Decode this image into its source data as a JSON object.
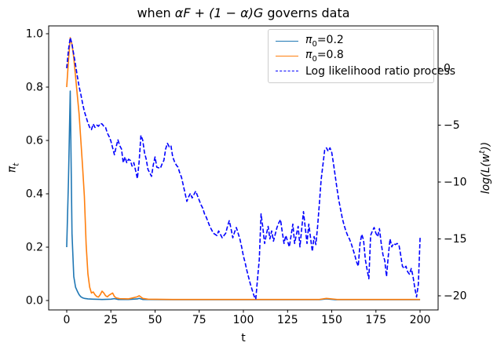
{
  "title": {
    "prefix": "when ",
    "math": "αF + (1 − α)G",
    "suffix": " governs data"
  },
  "x_axis": {
    "label": "t"
  },
  "y_left_axis": {
    "symbol": "π",
    "subscript": "t"
  },
  "y_right_axis": {
    "pre": "log(L(w",
    "sup": "t",
    "post": "))"
  },
  "legend": {
    "items": [
      {
        "symbol": "π",
        "subscript": "0",
        "text": "=0.2",
        "color": "#1f77b4",
        "style": "solid"
      },
      {
        "symbol": "π",
        "subscript": "0",
        "text": "=0.8",
        "color": "#ff7f0e",
        "style": "solid"
      },
      {
        "symbol": "",
        "subscript": "",
        "text": "Log likelihood ratio process",
        "color": "#0000ff",
        "style": "dashed"
      }
    ]
  },
  "colors": {
    "pi02": "#1f77b4",
    "pi08": "#ff7f0e",
    "llr": "#0000ff",
    "axis": "#000000",
    "legend_border": "#cccccc"
  },
  "chart_data": {
    "type": "line",
    "title": "when αF + (1 − α)G governs data",
    "xlabel": "t",
    "ylabel_left": "π_t",
    "ylabel_right": "log(L(w^t))",
    "grid": false,
    "legend_position": "upper right",
    "xlim": [
      -10.2,
      210.2
    ],
    "ylim_left": [
      -0.0353,
      1.0294
    ],
    "ylim_right": [
      -21.24,
      3.72
    ],
    "x_ticks": [
      [
        0,
        "0"
      ],
      [
        25,
        "25"
      ],
      [
        50,
        "50"
      ],
      [
        75,
        "75"
      ],
      [
        100,
        "100"
      ],
      [
        125,
        "125"
      ],
      [
        150,
        "150"
      ],
      [
        175,
        "175"
      ],
      [
        200,
        "200"
      ]
    ],
    "y_left_ticks": [
      [
        0.0,
        "0.0"
      ],
      [
        0.2,
        "0.2"
      ],
      [
        0.4,
        "0.4"
      ],
      [
        0.6,
        "0.6"
      ],
      [
        0.8,
        "0.8"
      ],
      [
        1.0,
        "1.0"
      ]
    ],
    "y_right_ticks": [
      [
        0,
        "0"
      ],
      [
        -5,
        "−5"
      ],
      [
        -10,
        "−10"
      ],
      [
        -15,
        "−15"
      ],
      [
        -20,
        "−20"
      ]
    ],
    "series": [
      {
        "name": "π0=0.2",
        "axis": "left",
        "color": "#1f77b4",
        "dash": false,
        "points": [
          [
            0,
            0.2
          ],
          [
            1,
            0.45
          ],
          [
            2,
            0.785
          ],
          [
            3,
            0.25
          ],
          [
            4,
            0.09
          ],
          [
            5,
            0.05
          ],
          [
            6,
            0.035
          ],
          [
            7,
            0.022
          ],
          [
            8,
            0.014
          ],
          [
            9,
            0.01
          ],
          [
            10,
            0.008
          ],
          [
            12,
            0.006
          ],
          [
            15,
            0.005
          ],
          [
            20,
            0.004
          ],
          [
            25,
            0.005
          ],
          [
            27,
            0.007
          ],
          [
            29,
            0.004
          ],
          [
            35,
            0.004
          ],
          [
            40,
            0.006
          ],
          [
            41,
            0.008
          ],
          [
            43,
            0.004
          ],
          [
            60,
            0.003
          ],
          [
            100,
            0.003
          ],
          [
            143,
            0.003
          ],
          [
            147,
            0.006
          ],
          [
            152,
            0.003
          ],
          [
            200,
            0.003
          ]
        ]
      },
      {
        "name": "π0=0.8",
        "axis": "left",
        "color": "#ff7f0e",
        "dash": false,
        "points": [
          [
            0,
            0.8
          ],
          [
            1,
            0.9
          ],
          [
            2,
            0.985
          ],
          [
            3,
            0.96
          ],
          [
            4,
            0.91
          ],
          [
            5,
            0.84
          ],
          [
            6,
            0.77
          ],
          [
            7,
            0.7
          ],
          [
            8,
            0.6
          ],
          [
            9,
            0.5
          ],
          [
            10,
            0.39
          ],
          [
            11,
            0.21
          ],
          [
            12,
            0.1
          ],
          [
            13,
            0.05
          ],
          [
            14,
            0.028
          ],
          [
            15,
            0.032
          ],
          [
            16,
            0.022
          ],
          [
            17,
            0.015
          ],
          [
            18,
            0.013
          ],
          [
            19,
            0.022
          ],
          [
            20,
            0.035
          ],
          [
            21,
            0.028
          ],
          [
            22,
            0.018
          ],
          [
            23,
            0.014
          ],
          [
            24,
            0.02
          ],
          [
            25,
            0.024
          ],
          [
            26,
            0.028
          ],
          [
            27,
            0.015
          ],
          [
            28,
            0.01
          ],
          [
            30,
            0.007
          ],
          [
            35,
            0.006
          ],
          [
            40,
            0.014
          ],
          [
            41,
            0.018
          ],
          [
            43,
            0.008
          ],
          [
            46,
            0.005
          ],
          [
            60,
            0.004
          ],
          [
            100,
            0.004
          ],
          [
            143,
            0.004
          ],
          [
            147,
            0.008
          ],
          [
            153,
            0.004
          ],
          [
            200,
            0.004
          ]
        ]
      },
      {
        "name": "Log likelihood ratio process",
        "axis": "right",
        "color": "#0000ff",
        "dash": true,
        "points": [
          [
            0,
            0
          ],
          [
            1,
            1.6
          ],
          [
            2,
            2.69
          ],
          [
            3,
            2.1
          ],
          [
            4,
            1.2
          ],
          [
            5,
            0.3
          ],
          [
            6,
            -0.7
          ],
          [
            7,
            -1.6
          ],
          [
            8,
            -2.3
          ],
          [
            9,
            -3.1
          ],
          [
            10,
            -3.8
          ],
          [
            11,
            -4.3
          ],
          [
            12,
            -4.8
          ],
          [
            13,
            -5.2
          ],
          [
            14,
            -5.4
          ],
          [
            15,
            -4.9
          ],
          [
            16,
            -5.2
          ],
          [
            17,
            -5.0
          ],
          [
            18,
            -5.1
          ],
          [
            19,
            -4.85
          ],
          [
            20,
            -4.9
          ],
          [
            21,
            -5.1
          ],
          [
            22,
            -5.2
          ],
          [
            23,
            -5.7
          ],
          [
            24,
            -6.0
          ],
          [
            25,
            -6.4
          ],
          [
            26,
            -7.0
          ],
          [
            27,
            -7.6
          ],
          [
            28,
            -6.9
          ],
          [
            29,
            -6.3
          ],
          [
            30,
            -6.8
          ],
          [
            31,
            -7.1
          ],
          [
            32,
            -8.3
          ],
          [
            33,
            -7.8
          ],
          [
            34,
            -8.3
          ],
          [
            35,
            -8.0
          ],
          [
            36,
            -8.1
          ],
          [
            37,
            -8.6
          ],
          [
            38,
            -8.3
          ],
          [
            39,
            -9.0
          ],
          [
            40,
            -9.7
          ],
          [
            41,
            -8.2
          ],
          [
            42,
            -5.9
          ],
          [
            43,
            -6.3
          ],
          [
            44,
            -7.4
          ],
          [
            45,
            -8.0
          ],
          [
            46,
            -8.9
          ],
          [
            47,
            -9.2
          ],
          [
            48,
            -9.5
          ],
          [
            49,
            -8.5
          ],
          [
            50,
            -7.8
          ],
          [
            51,
            -8.7
          ],
          [
            52,
            -8.75
          ],
          [
            53,
            -8.8
          ],
          [
            54,
            -8.4
          ],
          [
            55,
            -8.1
          ],
          [
            56,
            -7.1
          ],
          [
            57,
            -6.6
          ],
          [
            58,
            -6.9
          ],
          [
            59,
            -6.8
          ],
          [
            60,
            -7.8
          ],
          [
            61,
            -8.2
          ],
          [
            62,
            -8.5
          ],
          [
            63,
            -8.7
          ],
          [
            64,
            -9.2
          ],
          [
            65,
            -9.6
          ],
          [
            66,
            -10.3
          ],
          [
            67,
            -11.0
          ],
          [
            68,
            -11.7
          ],
          [
            69,
            -11.3
          ],
          [
            70,
            -11.0
          ],
          [
            71,
            -11.4
          ],
          [
            72,
            -11.1
          ],
          [
            73,
            -10.8
          ],
          [
            74,
            -11.2
          ],
          [
            75,
            -11.6
          ],
          [
            76,
            -12.0
          ],
          [
            77,
            -12.3
          ],
          [
            78,
            -12.8
          ],
          [
            79,
            -13.1
          ],
          [
            80,
            -13.5
          ],
          [
            81,
            -13.9
          ],
          [
            82,
            -14.2
          ],
          [
            83,
            -14.5
          ],
          [
            84,
            -14.6
          ],
          [
            85,
            -14.7
          ],
          [
            86,
            -14.3
          ],
          [
            87,
            -14.6
          ],
          [
            88,
            -14.9
          ],
          [
            89,
            -14.7
          ],
          [
            90,
            -14.5
          ],
          [
            91,
            -13.9
          ],
          [
            92,
            -13.4
          ],
          [
            93,
            -14.1
          ],
          [
            94,
            -14.9
          ],
          [
            95,
            -14.4
          ],
          [
            96,
            -14.0
          ],
          [
            97,
            -14.5
          ],
          [
            98,
            -15.0
          ],
          [
            99,
            -15.7
          ],
          [
            100,
            -16.5
          ],
          [
            101,
            -17.1
          ],
          [
            102,
            -17.8
          ],
          [
            103,
            -18.4
          ],
          [
            104,
            -19.0
          ],
          [
            105,
            -19.5
          ],
          [
            106,
            -20.0
          ],
          [
            107,
            -20.3
          ],
          [
            108,
            -18.5
          ],
          [
            109,
            -16.8
          ],
          [
            110,
            -12.8
          ],
          [
            111,
            -14.0
          ],
          [
            112,
            -15.4
          ],
          [
            113,
            -14.6
          ],
          [
            114,
            -13.9
          ],
          [
            115,
            -15.0
          ],
          [
            116,
            -14.3
          ],
          [
            117,
            -15.2
          ],
          [
            118,
            -14.6
          ],
          [
            119,
            -14.0
          ],
          [
            120,
            -13.6
          ],
          [
            121,
            -13.3
          ],
          [
            122,
            -14.4
          ],
          [
            123,
            -15.4
          ],
          [
            124,
            -14.7
          ],
          [
            125,
            -15.2
          ],
          [
            126,
            -15.7
          ],
          [
            127,
            -14.7
          ],
          [
            128,
            -13.7
          ],
          [
            129,
            -15.4
          ],
          [
            130,
            -14.6
          ],
          [
            131,
            -13.9
          ],
          [
            132,
            -15.7
          ],
          [
            133,
            -14.1
          ],
          [
            134,
            -12.6
          ],
          [
            135,
            -14.0
          ],
          [
            136,
            -15.4
          ],
          [
            137,
            -13.7
          ],
          [
            138,
            -14.9
          ],
          [
            139,
            -16.1
          ],
          [
            140,
            -14.8
          ],
          [
            141,
            -15.5
          ],
          [
            142,
            -13.9
          ],
          [
            143,
            -11.9
          ],
          [
            144,
            -9.8
          ],
          [
            145,
            -8.5
          ],
          [
            146,
            -7.2
          ],
          [
            147,
            -7.0
          ],
          [
            148,
            -7.3
          ],
          [
            149,
            -7.0
          ],
          [
            150,
            -7.4
          ],
          [
            151,
            -8.4
          ],
          [
            152,
            -9.5
          ],
          [
            153,
            -10.6
          ],
          [
            154,
            -11.6
          ],
          [
            155,
            -12.4
          ],
          [
            156,
            -13.2
          ],
          [
            157,
            -13.8
          ],
          [
            158,
            -14.3
          ],
          [
            159,
            -14.7
          ],
          [
            160,
            -15.0
          ],
          [
            161,
            -15.4
          ],
          [
            162,
            -15.9
          ],
          [
            163,
            -16.4
          ],
          [
            164,
            -17.0
          ],
          [
            165,
            -17.4
          ],
          [
            166,
            -15.4
          ],
          [
            167,
            -14.6
          ],
          [
            168,
            -15.1
          ],
          [
            169,
            -16.8
          ],
          [
            170,
            -17.7
          ],
          [
            171,
            -18.5
          ],
          [
            172,
            -14.7
          ],
          [
            173,
            -14.3
          ],
          [
            174,
            -14.0
          ],
          [
            175,
            -14.5
          ],
          [
            176,
            -14.8
          ],
          [
            177,
            -14.1
          ],
          [
            178,
            -15.4
          ],
          [
            179,
            -16.4
          ],
          [
            180,
            -16.9
          ],
          [
            181,
            -18.3
          ],
          [
            182,
            -16.5
          ],
          [
            183,
            -15.0
          ],
          [
            184,
            -15.7
          ],
          [
            185,
            -15.4
          ],
          [
            186,
            -15.5
          ],
          [
            187,
            -15.4
          ],
          [
            188,
            -15.5
          ],
          [
            189,
            -16.4
          ],
          [
            190,
            -17.4
          ],
          [
            191,
            -17.6
          ],
          [
            192,
            -17.4
          ],
          [
            193,
            -17.9
          ],
          [
            194,
            -18.1
          ],
          [
            195,
            -17.6
          ],
          [
            196,
            -18.3
          ],
          [
            197,
            -19.3
          ],
          [
            198,
            -20.1
          ],
          [
            199,
            -19.0
          ],
          [
            200,
            -14.9
          ]
        ]
      }
    ]
  }
}
